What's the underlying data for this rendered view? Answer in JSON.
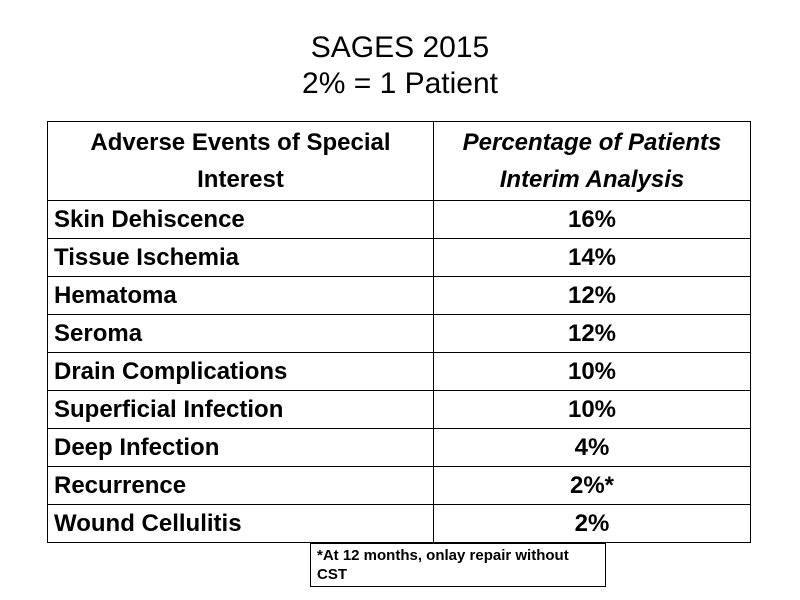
{
  "title": {
    "line1": "SAGES 2015",
    "line2": "2% = 1 Patient"
  },
  "table": {
    "headers": [
      "Adverse Events of Special Interest",
      "Percentage of Patients Interim Analysis"
    ],
    "rows": [
      {
        "event": "Skin Dehiscence",
        "percentage": "16%"
      },
      {
        "event": "Tissue Ischemia",
        "percentage": "14%"
      },
      {
        "event": "Hematoma",
        "percentage": "12%"
      },
      {
        "event": "Seroma",
        "percentage": "12%"
      },
      {
        "event": "Drain Complications",
        "percentage": "10%"
      },
      {
        "event": "Superficial Infection",
        "percentage": "10%"
      },
      {
        "event": "Deep Infection",
        "percentage": "4%"
      },
      {
        "event": "Recurrence",
        "percentage": "2%*"
      },
      {
        "event": "Wound Cellulitis",
        "percentage": "2%"
      }
    ]
  },
  "footnote": "*At 12 months, onlay repair without CST"
}
